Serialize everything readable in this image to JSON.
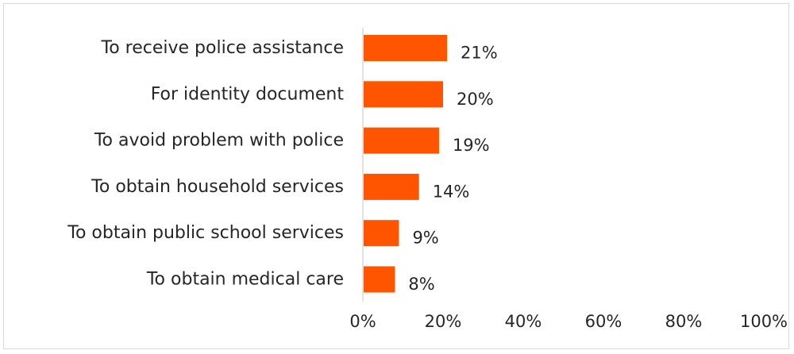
{
  "chart_data": {
    "type": "bar",
    "orientation": "horizontal",
    "categories": [
      "To receive police assistance",
      "For identity document",
      "To avoid problem with police",
      "To obtain household services",
      "To obtain public school services",
      "To obtain medical care"
    ],
    "values": [
      21,
      20,
      19,
      14,
      9,
      8
    ],
    "data_labels": [
      "21%",
      "20%",
      "19%",
      "14%",
      "9%",
      "8%"
    ],
    "xlim": [
      0,
      100
    ],
    "x_ticks": [
      0,
      20,
      40,
      60,
      80,
      100
    ],
    "x_tick_labels": [
      "0%",
      "20%",
      "40%",
      "60%",
      "80%",
      "100%"
    ],
    "grid": false,
    "legend": "none",
    "bar_color": "#FF5500",
    "axis_color": "#d9d9d9"
  }
}
